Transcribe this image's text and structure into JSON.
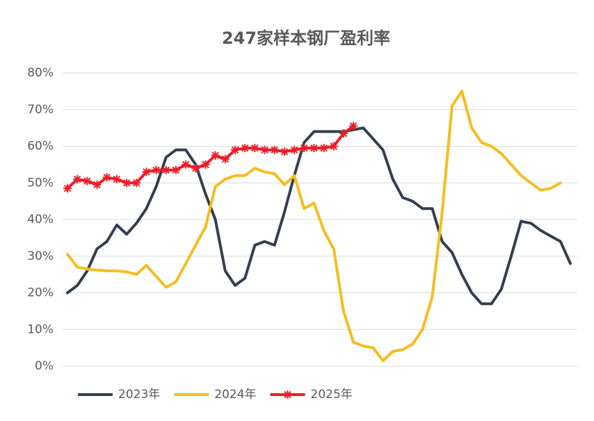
{
  "chart_data": {
    "type": "line",
    "title": "247家样本钢厂盈利率",
    "categories": [
      null,
      null,
      null,
      null,
      null,
      null,
      null,
      null,
      null,
      null,
      null,
      null,
      null,
      null,
      null,
      null,
      null,
      null,
      null,
      null,
      null,
      null,
      null,
      null,
      null,
      null,
      null,
      null,
      null,
      null,
      null,
      null,
      null,
      null,
      null,
      null,
      null,
      null,
      null,
      null,
      null,
      null,
      null,
      null,
      null,
      null,
      null,
      null,
      null,
      null,
      null,
      null
    ],
    "series": [
      {
        "name": "2023年",
        "color": "#333f50",
        "marker": "none",
        "values": [
          20,
          22,
          26,
          32,
          34,
          38.5,
          36,
          39,
          43,
          49,
          57,
          59,
          59,
          55,
          47,
          40,
          26,
          22,
          24,
          33,
          34,
          33,
          42,
          52,
          61,
          64,
          64,
          64,
          64,
          64.5,
          65,
          62,
          59,
          51,
          46,
          45,
          43,
          43,
          34,
          31,
          25,
          20,
          17,
          17,
          21,
          30,
          39.5,
          39,
          37,
          35.5,
          34,
          28
        ]
      },
      {
        "name": "2024年",
        "color": "#f5bd1f",
        "marker": "none",
        "values": [
          30.5,
          27,
          26.5,
          26.2,
          26,
          26,
          25.7,
          25,
          27.5,
          24.5,
          21.5,
          23,
          28,
          33,
          38,
          49,
          51,
          52,
          52,
          54,
          53,
          52.5,
          49.5,
          52,
          43,
          44.5,
          37,
          32,
          15,
          6.5,
          5.5,
          5,
          1.5,
          4,
          4.5,
          6,
          10,
          19,
          42,
          71,
          75,
          65,
          61,
          60,
          58,
          55,
          52,
          50,
          48,
          48.5,
          50,
          null
        ]
      },
      {
        "name": "2025年",
        "color": "#ee1c25",
        "marker": "star",
        "values": [
          48.5,
          51,
          50.5,
          49.5,
          51.5,
          51,
          50,
          50,
          53,
          53.5,
          53.5,
          53.5,
          55,
          54,
          55,
          57.5,
          56.5,
          59,
          59.5,
          59.5,
          59,
          59,
          58.5,
          59,
          59.5,
          59.5,
          59.5,
          60,
          63.5,
          65.5,
          null,
          null,
          null,
          null,
          null,
          null,
          null,
          null,
          null,
          null,
          null,
          null,
          null,
          null,
          null,
          null,
          null,
          null,
          null,
          null,
          null,
          null
        ]
      }
    ],
    "ylim": [
      0,
      80
    ],
    "yticks": [
      {
        "value": 0,
        "label": "0%"
      },
      {
        "value": 10,
        "label": "10%"
      },
      {
        "value": 20,
        "label": "20%"
      },
      {
        "value": 30,
        "label": "30%"
      },
      {
        "value": 40,
        "label": "40%"
      },
      {
        "value": 50,
        "label": "50%"
      },
      {
        "value": 60,
        "label": "60%"
      },
      {
        "value": 70,
        "label": "70%"
      },
      {
        "value": 80,
        "label": "80%"
      }
    ],
    "grid": true,
    "legend": "bottom"
  }
}
